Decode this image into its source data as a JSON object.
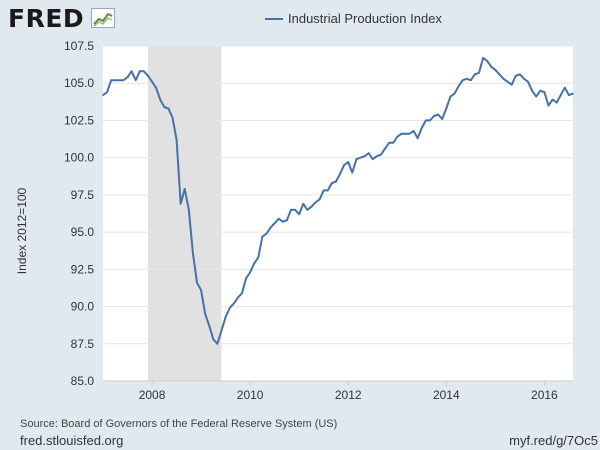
{
  "brand": {
    "logo_text": "FRED",
    "logo_icon": "line-chart-icon"
  },
  "footer": {
    "source": "Source: Board of Governors of the Federal Reserve System (US)",
    "site": "fred.stlouisfed.org",
    "short_url": "myf.red/g/7Oc5"
  },
  "colors": {
    "line": "#4572a7",
    "recession": "#e1e1e1",
    "plot_bg": "#ffffff",
    "page_bg": "#e1e9f0",
    "grid": "#e6e6e6"
  },
  "chart_data": {
    "type": "line",
    "title": "",
    "xlabel": "",
    "ylabel": "Index 2012=100",
    "ylim": [
      85,
      107.5
    ],
    "yticks": [
      "85.0",
      "87.5",
      "90.0",
      "92.5",
      "95.0",
      "97.5",
      "100.0",
      "102.5",
      "105.0",
      "107.5"
    ],
    "xlim": [
      "2007-01",
      "2016-08"
    ],
    "xticks": [
      "2008",
      "2010",
      "2012",
      "2014",
      "2016"
    ],
    "grid": "horizontal",
    "legend": "top",
    "shaded_ranges": [
      [
        "2007-12",
        "2009-06"
      ]
    ],
    "series": [
      {
        "name": "Industrial Production Index",
        "x": [
          "2007-01",
          "2007-02",
          "2007-03",
          "2007-04",
          "2007-05",
          "2007-06",
          "2007-07",
          "2007-08",
          "2007-09",
          "2007-10",
          "2007-11",
          "2007-12",
          "2008-01",
          "2008-02",
          "2008-03",
          "2008-04",
          "2008-05",
          "2008-06",
          "2008-07",
          "2008-08",
          "2008-09",
          "2008-10",
          "2008-11",
          "2008-12",
          "2009-01",
          "2009-02",
          "2009-03",
          "2009-04",
          "2009-05",
          "2009-06",
          "2009-07",
          "2009-08",
          "2009-09",
          "2009-10",
          "2009-11",
          "2009-12",
          "2010-01",
          "2010-02",
          "2010-03",
          "2010-04",
          "2010-05",
          "2010-06",
          "2010-07",
          "2010-08",
          "2010-09",
          "2010-10",
          "2010-11",
          "2010-12",
          "2011-01",
          "2011-02",
          "2011-03",
          "2011-04",
          "2011-05",
          "2011-06",
          "2011-07",
          "2011-08",
          "2011-09",
          "2011-10",
          "2011-11",
          "2011-12",
          "2012-01",
          "2012-02",
          "2012-03",
          "2012-04",
          "2012-05",
          "2012-06",
          "2012-07",
          "2012-08",
          "2012-09",
          "2012-10",
          "2012-11",
          "2012-12",
          "2013-01",
          "2013-02",
          "2013-03",
          "2013-04",
          "2013-05",
          "2013-06",
          "2013-07",
          "2013-08",
          "2013-09",
          "2013-10",
          "2013-11",
          "2013-12",
          "2014-01",
          "2014-02",
          "2014-03",
          "2014-04",
          "2014-05",
          "2014-06",
          "2014-07",
          "2014-08",
          "2014-09",
          "2014-10",
          "2014-11",
          "2014-12",
          "2015-01",
          "2015-02",
          "2015-03",
          "2015-04",
          "2015-05",
          "2015-06",
          "2015-07",
          "2015-08",
          "2015-09",
          "2015-10",
          "2015-11",
          "2015-12",
          "2016-01",
          "2016-02",
          "2016-03",
          "2016-04",
          "2016-05",
          "2016-06",
          "2016-07",
          "2016-08"
        ],
        "values": [
          104.2,
          104.4,
          105.2,
          105.2,
          105.2,
          105.2,
          105.4,
          105.8,
          105.2,
          105.8,
          105.8,
          105.5,
          105.1,
          104.7,
          103.9,
          103.4,
          103.3,
          102.7,
          101.2,
          96.9,
          97.9,
          96.5,
          93.6,
          91.6,
          91.1,
          89.5,
          88.7,
          87.8,
          87.5,
          88.4,
          89.3,
          89.9,
          90.2,
          90.6,
          90.9,
          91.9,
          92.3,
          92.9,
          93.3,
          94.7,
          94.9,
          95.3,
          95.6,
          95.9,
          95.7,
          95.8,
          96.5,
          96.5,
          96.2,
          96.9,
          96.5,
          96.7,
          97.0,
          97.2,
          97.8,
          97.8,
          98.3,
          98.4,
          98.9,
          99.5,
          99.7,
          99.0,
          99.9,
          100.0,
          100.1,
          100.3,
          99.9,
          100.1,
          100.2,
          100.6,
          101.0,
          101.0,
          101.4,
          101.6,
          101.6,
          101.6,
          101.8,
          101.3,
          102.0,
          102.5,
          102.5,
          102.8,
          102.9,
          102.6,
          103.3,
          104.1,
          104.3,
          104.8,
          105.2,
          105.3,
          105.2,
          105.6,
          105.7,
          106.7,
          106.5,
          106.1,
          105.9,
          105.6,
          105.3,
          105.1,
          104.9,
          105.5,
          105.6,
          105.3,
          105.1,
          104.5,
          104.1,
          104.5,
          104.4,
          103.5,
          103.9,
          103.7,
          104.2,
          104.7,
          104.2,
          104.3
        ]
      }
    ]
  }
}
